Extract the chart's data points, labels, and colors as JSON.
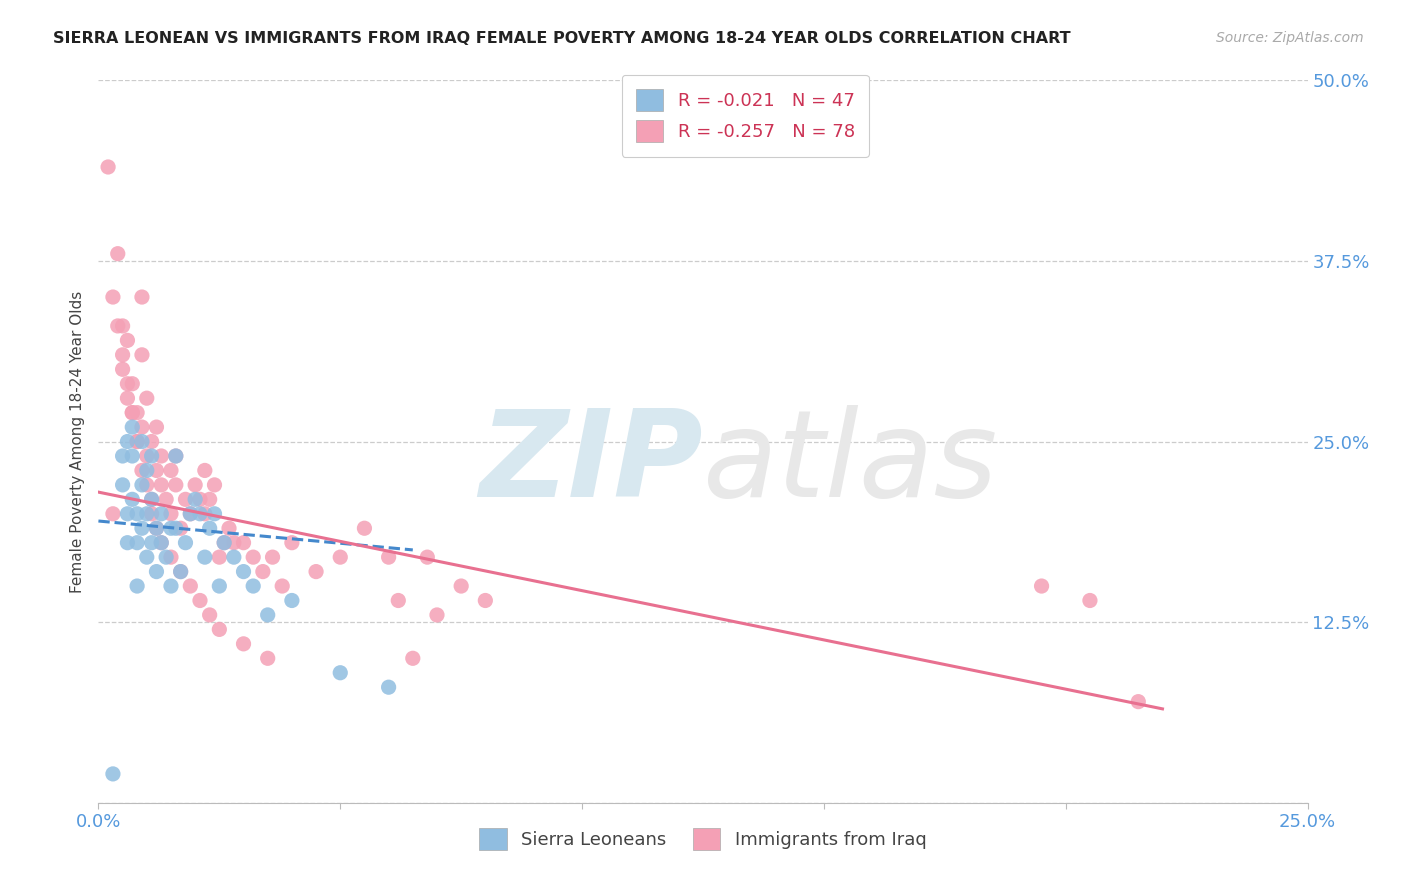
{
  "title": "SIERRA LEONEAN VS IMMIGRANTS FROM IRAQ FEMALE POVERTY AMONG 18-24 YEAR OLDS CORRELATION CHART",
  "source": "Source: ZipAtlas.com",
  "ylabel": "Female Poverty Among 18-24 Year Olds",
  "xlim": [
    0.0,
    0.25
  ],
  "ylim": [
    0.0,
    0.5
  ],
  "xticks": [
    0.0,
    0.05,
    0.1,
    0.15,
    0.2,
    0.25
  ],
  "xtick_labels": [
    "0.0%",
    "",
    "",
    "",
    "",
    "25.0%"
  ],
  "yticks_right": [
    0.0,
    0.125,
    0.25,
    0.375,
    0.5
  ],
  "ytick_right_labels": [
    "",
    "12.5%",
    "25.0%",
    "37.5%",
    "50.0%"
  ],
  "grid_color": "#cccccc",
  "background_color": "#ffffff",
  "color_blue": "#90bde0",
  "color_pink": "#f4a0b5",
  "color_blue_line": "#4488cc",
  "color_pink_line": "#e87090",
  "color_axis_labels": "#5599dd",
  "legend_r1": "R = -0.021",
  "legend_n1": "N = 47",
  "legend_r2": "R = -0.257",
  "legend_n2": "N = 78",
  "sl_x": [
    0.003,
    0.005,
    0.005,
    0.006,
    0.006,
    0.006,
    0.007,
    0.007,
    0.007,
    0.008,
    0.008,
    0.008,
    0.009,
    0.009,
    0.009,
    0.01,
    0.01,
    0.01,
    0.011,
    0.011,
    0.011,
    0.012,
    0.012,
    0.013,
    0.013,
    0.014,
    0.015,
    0.015,
    0.016,
    0.016,
    0.017,
    0.018,
    0.019,
    0.02,
    0.021,
    0.022,
    0.023,
    0.024,
    0.025,
    0.026,
    0.028,
    0.03,
    0.032,
    0.035,
    0.04,
    0.05,
    0.06
  ],
  "sl_y": [
    0.02,
    0.24,
    0.22,
    0.18,
    0.2,
    0.25,
    0.24,
    0.21,
    0.26,
    0.15,
    0.18,
    0.2,
    0.19,
    0.22,
    0.25,
    0.17,
    0.2,
    0.23,
    0.18,
    0.21,
    0.24,
    0.16,
    0.19,
    0.2,
    0.18,
    0.17,
    0.15,
    0.19,
    0.19,
    0.24,
    0.16,
    0.18,
    0.2,
    0.21,
    0.2,
    0.17,
    0.19,
    0.2,
    0.15,
    0.18,
    0.17,
    0.16,
    0.15,
    0.13,
    0.14,
    0.09,
    0.08
  ],
  "iraq_x": [
    0.002,
    0.003,
    0.004,
    0.005,
    0.005,
    0.006,
    0.006,
    0.007,
    0.007,
    0.008,
    0.008,
    0.009,
    0.009,
    0.009,
    0.01,
    0.01,
    0.011,
    0.011,
    0.012,
    0.012,
    0.013,
    0.013,
    0.014,
    0.015,
    0.015,
    0.016,
    0.016,
    0.017,
    0.018,
    0.019,
    0.02,
    0.021,
    0.022,
    0.022,
    0.023,
    0.024,
    0.025,
    0.026,
    0.027,
    0.028,
    0.03,
    0.032,
    0.034,
    0.036,
    0.038,
    0.04,
    0.045,
    0.05,
    0.055,
    0.06,
    0.062,
    0.065,
    0.068,
    0.07,
    0.075,
    0.08,
    0.003,
    0.004,
    0.005,
    0.006,
    0.007,
    0.008,
    0.009,
    0.01,
    0.011,
    0.012,
    0.013,
    0.015,
    0.017,
    0.019,
    0.021,
    0.023,
    0.025,
    0.03,
    0.035,
    0.195,
    0.205,
    0.215
  ],
  "iraq_y": [
    0.44,
    0.2,
    0.38,
    0.3,
    0.33,
    0.28,
    0.32,
    0.27,
    0.29,
    0.25,
    0.27,
    0.31,
    0.26,
    0.35,
    0.24,
    0.28,
    0.21,
    0.25,
    0.23,
    0.26,
    0.22,
    0.24,
    0.21,
    0.23,
    0.2,
    0.22,
    0.24,
    0.19,
    0.21,
    0.2,
    0.22,
    0.21,
    0.23,
    0.2,
    0.21,
    0.22,
    0.17,
    0.18,
    0.19,
    0.18,
    0.18,
    0.17,
    0.16,
    0.17,
    0.15,
    0.18,
    0.16,
    0.17,
    0.19,
    0.17,
    0.14,
    0.1,
    0.17,
    0.13,
    0.15,
    0.14,
    0.35,
    0.33,
    0.31,
    0.29,
    0.27,
    0.25,
    0.23,
    0.22,
    0.2,
    0.19,
    0.18,
    0.17,
    0.16,
    0.15,
    0.14,
    0.13,
    0.12,
    0.11,
    0.1,
    0.15,
    0.14,
    0.07
  ],
  "sl_trend_x": [
    0.0,
    0.065
  ],
  "sl_trend_y": [
    0.195,
    0.175
  ],
  "iraq_trend_x": [
    0.0,
    0.22
  ],
  "iraq_trend_y": [
    0.215,
    0.065
  ]
}
